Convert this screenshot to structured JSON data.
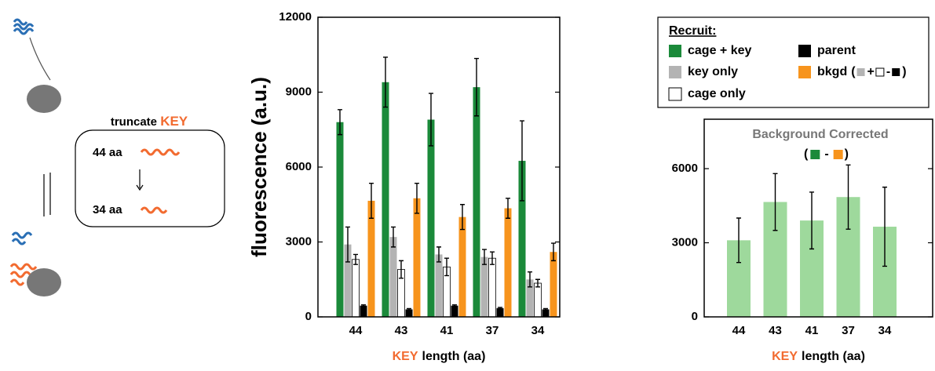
{
  "diagram": {
    "title_parts": [
      "truncate",
      "KEY"
    ],
    "long_label": "44 aa",
    "short_label": "34 aa"
  },
  "chart_data": [
    {
      "type": "bar",
      "y_label": "fluorescence (a.u.)",
      "x_label_parts": [
        "KEY",
        "length (aa)"
      ],
      "legend_title": "Recruit:",
      "legend_formula_parts": [
        "(",
        "+",
        "-",
        ")"
      ],
      "categories": [
        "44",
        "43",
        "41",
        "37",
        "34"
      ],
      "ylim": [
        0,
        12000
      ],
      "yticks": [
        0,
        3000,
        6000,
        9000,
        12000
      ],
      "series": [
        {
          "name": "cage + key",
          "color": "#1b8a3a",
          "values": [
            7800,
            9400,
            7900,
            9200,
            6250
          ],
          "errors": [
            500,
            1000,
            1050,
            1150,
            1600
          ]
        },
        {
          "name": "key only",
          "color": "#b3b3b3",
          "values": [
            2900,
            3200,
            2500,
            2400,
            1500
          ],
          "errors": [
            700,
            400,
            300,
            300,
            300
          ]
        },
        {
          "name": "cage only",
          "color": "#ffffff",
          "values": [
            2300,
            1900,
            2000,
            2350,
            1350
          ],
          "errors": [
            200,
            350,
            350,
            250,
            150
          ]
        },
        {
          "name": "parent",
          "color": "#000000",
          "values": [
            450,
            300,
            450,
            350,
            300
          ],
          "errors": [
            30,
            30,
            30,
            30,
            30
          ]
        },
        {
          "name": "bkgd",
          "color": "#f7941d",
          "values": [
            4650,
            4750,
            4000,
            4350,
            2600
          ],
          "errors": [
            700,
            600,
            500,
            400,
            350
          ]
        }
      ]
    },
    {
      "type": "bar",
      "title": "Background Corrected",
      "subtitle_parts": [
        "(",
        "-",
        ")"
      ],
      "x_label_parts": [
        "KEY",
        "length (aa)"
      ],
      "categories": [
        "44",
        "43",
        "41",
        "37",
        "34"
      ],
      "ylim": [
        0,
        8000
      ],
      "yticks": [
        0,
        3000,
        6000
      ],
      "series": [
        {
          "color": "#9ed99c",
          "values": [
            3100,
            4650,
            3900,
            4850,
            3650
          ],
          "errors": [
            900,
            1150,
            1150,
            1300,
            1600
          ]
        }
      ]
    }
  ]
}
